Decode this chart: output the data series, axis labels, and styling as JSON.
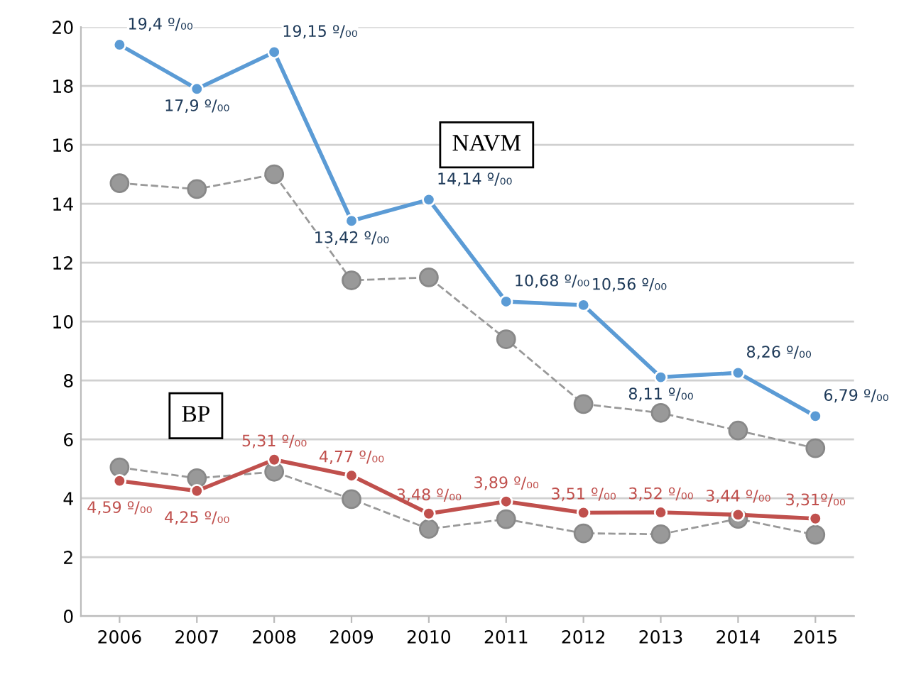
{
  "chart_data": {
    "type": "line",
    "categories": [
      "2006",
      "2007",
      "2008",
      "2009",
      "2010",
      "2011",
      "2012",
      "2013",
      "2014",
      "2015"
    ],
    "series": [
      {
        "name": "NAVM",
        "color": "#5b9bd5",
        "values": [
          19.4,
          17.9,
          19.15,
          13.42,
          14.14,
          10.68,
          10.56,
          8.11,
          8.26,
          6.79
        ],
        "value_labels": [
          "19,4 º/₀₀",
          "17,9 º/₀₀",
          "19,15 º/₀₀",
          "13,42 º/₀₀",
          "14,14 º/₀₀",
          "10,68 º/₀₀",
          "10,56 º/₀₀",
          "8,11 º/₀₀",
          "8,26 º/₀₀",
          "6,79 º/₀₀"
        ],
        "line_style": "solid"
      },
      {
        "color": "#999999",
        "values": [
          14.7,
          14.5,
          15.0,
          11.4,
          11.5,
          9.4,
          7.2,
          6.9,
          6.3,
          5.7
        ],
        "line_style": "dashed"
      },
      {
        "name": "BP",
        "color": "#c0504d",
        "values": [
          4.59,
          4.25,
          5.31,
          4.77,
          3.48,
          3.89,
          3.51,
          3.52,
          3.44,
          3.31
        ],
        "value_labels": [
          "4,59 º/₀₀",
          "4,25 º/₀₀",
          "5,31 º/₀₀",
          "4,77 º/₀₀",
          "3,48 º/₀₀",
          "3,89 º/₀₀",
          "3,51 º/₀₀",
          "3,52 º/₀₀",
          "3,44 º/₀₀",
          "3,31º/₀₀"
        ],
        "line_style": "solid"
      },
      {
        "color": "#999999",
        "values": [
          5.05,
          4.68,
          4.9,
          3.97,
          2.96,
          3.29,
          2.81,
          2.78,
          3.3,
          2.76
        ],
        "line_style": "dashed"
      }
    ],
    "ylim": [
      0,
      20
    ],
    "yticks": [
      0,
      2,
      4,
      6,
      8,
      10,
      12,
      14,
      16,
      18,
      20
    ],
    "grid": "y",
    "legend": false,
    "marker": "circle"
  }
}
